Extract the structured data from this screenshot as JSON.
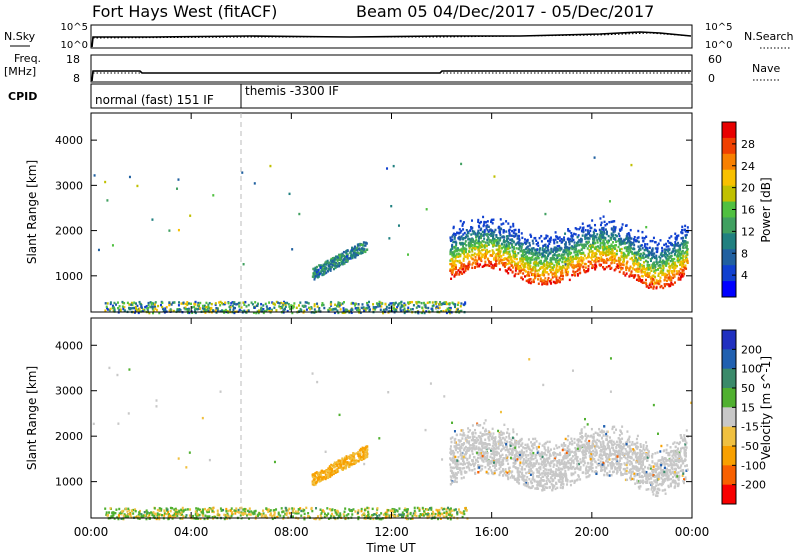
{
  "header": {
    "station": "Fort Hays West (fitACF)",
    "beam_date": "Beam 05  04/Dec/2017 - 05/Dec/2017"
  },
  "top_panels": {
    "nsky_label": "N.Sky",
    "nsky_ticks": [
      "10^5",
      "10^0"
    ],
    "nsearch_label": "N.Search",
    "nsearch_ticks": [
      "10^5",
      "10^0"
    ],
    "freq_label": "Freq.",
    "freq_unit": "[MHz]",
    "freq_ticks": [
      "18",
      "8"
    ],
    "nave_label": "Nave",
    "nave_ticks": [
      "60",
      "0"
    ],
    "cpid_label": "CPID",
    "cpid_segments": [
      {
        "start_hour": 0.0,
        "label": "normal (fast) 151 IF"
      },
      {
        "start_hour": 6.0,
        "label": "themis -3300 IF"
      }
    ]
  },
  "power_colorbar": {
    "label": "Power [dB]",
    "ticks": [
      "28",
      "24",
      "20",
      "16",
      "12",
      "8",
      "4"
    ],
    "colors": [
      "#e80000",
      "#f04000",
      "#f88000",
      "#f8c000",
      "#c0c000",
      "#50c040",
      "#40a060",
      "#208080",
      "#2060a0",
      "#1040d0",
      "#0000ff"
    ]
  },
  "velocity_colorbar": {
    "label": "Velocity [m s^-1]",
    "ticks": [
      "200",
      "100",
      "50",
      "15",
      "-15",
      "-50",
      "-100",
      "-200"
    ],
    "colors": [
      "#2030c0",
      "#2060b0",
      "#3a8a6a",
      "#50b030",
      "#c8c8c8",
      "#f0c040",
      "#f8a000",
      "#f86000",
      "#f80000"
    ]
  },
  "chart_data": [
    {
      "type": "heatmap",
      "title": "Power",
      "xlabel": "",
      "ylabel": "Slant Range [km]",
      "xlim": [
        0,
        24
      ],
      "ylim": [
        200,
        4600
      ],
      "yticks": [
        "4000",
        "3000",
        "2000",
        "1000"
      ],
      "xticks": [
        "00:00",
        "04:00",
        "08:00",
        "12:00",
        "16:00",
        "20:00",
        "00:00"
      ],
      "features": [
        {
          "name": "near-range clutter",
          "hours": [
            0.5,
            15.0
          ],
          "range_km": [
            200,
            450
          ],
          "power_db": 10
        },
        {
          "name": "midday patch",
          "hours": [
            8.8,
            11.0
          ],
          "range_km": [
            1050,
            1700
          ],
          "power_db": 8
        },
        {
          "name": "main band",
          "hours": [
            14.3,
            23.8
          ],
          "range_km": [
            900,
            2300
          ],
          "power_db": 24
        }
      ]
    },
    {
      "type": "heatmap",
      "title": "Velocity",
      "xlabel": "Time UT",
      "ylabel": "Slant Range [km]",
      "xlim": [
        0,
        24
      ],
      "ylim": [
        200,
        4600
      ],
      "yticks": [
        "4000",
        "3000",
        "2000",
        "1000"
      ],
      "xticks": [
        "00:00",
        "04:00",
        "08:00",
        "12:00",
        "16:00",
        "20:00",
        "00:00"
      ],
      "features": [
        {
          "name": "near-range",
          "hours": [
            0.5,
            15.0
          ],
          "range_km": [
            200,
            450
          ],
          "velocity": 30
        },
        {
          "name": "midday patch",
          "hours": [
            8.8,
            11.0
          ],
          "range_km": [
            1050,
            1700
          ],
          "velocity": -50
        },
        {
          "name": "main band",
          "hours": [
            14.3,
            23.8
          ],
          "range_km": [
            900,
            2300
          ],
          "velocity": 0
        }
      ]
    }
  ]
}
